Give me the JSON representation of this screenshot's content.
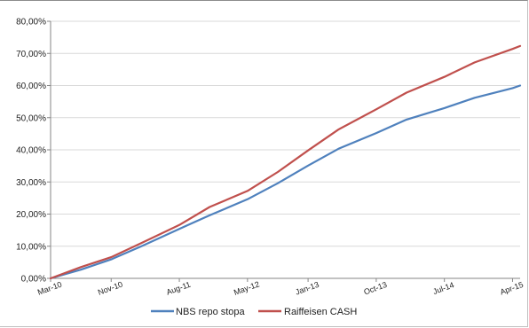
{
  "chart_data": {
    "type": "line",
    "title": "",
    "xlabel": "",
    "ylabel": "",
    "x_ticks": [
      "Mar-10",
      "Nov-10",
      "Aug-11",
      "May-12",
      "Jan-13",
      "Oct-13",
      "Jul-14",
      "Apr-15"
    ],
    "y_ticks": [
      "0,00%",
      "10,00%",
      "20,00%",
      "30,00%",
      "40,00%",
      "50,00%",
      "60,00%",
      "70,00%",
      "80,00%"
    ],
    "ylim": [
      0,
      80
    ],
    "y_unit": "percent",
    "grid": "horizontal",
    "legend_position": "bottom",
    "x_dates": [
      "2010-03",
      "2010-07",
      "2010-11",
      "2011-03",
      "2011-08",
      "2011-12",
      "2012-05",
      "2012-09",
      "2013-01",
      "2013-05",
      "2013-10",
      "2014-02",
      "2014-07",
      "2014-11",
      "2015-04",
      "2015-05"
    ],
    "series": [
      {
        "name": "NBS repo stopa",
        "color": "#4f81bd",
        "values": [
          0.0,
          2.7,
          5.9,
          10.0,
          15.4,
          19.6,
          24.6,
          29.6,
          35.1,
          40.3,
          45.2,
          49.4,
          53.0,
          56.2,
          59.2,
          60.0
        ]
      },
      {
        "name": "Raiffeisen CASH",
        "color": "#c0504d",
        "values": [
          0.0,
          3.5,
          6.6,
          11.0,
          16.6,
          22.2,
          27.2,
          33.1,
          39.8,
          46.3,
          52.6,
          57.8,
          62.7,
          67.2,
          71.4,
          72.3
        ]
      }
    ]
  }
}
